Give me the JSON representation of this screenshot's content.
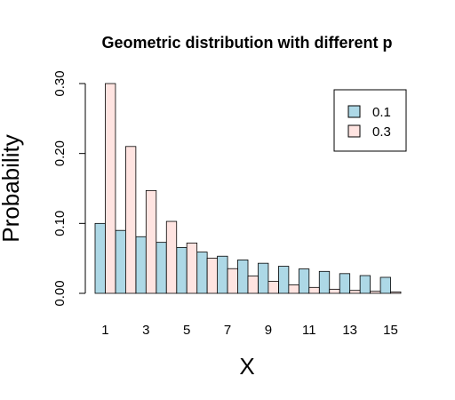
{
  "chart_data": {
    "type": "bar",
    "title": "Geometric distribution with different p",
    "xlabel": "X",
    "ylabel": "Probability",
    "categories": [
      "1",
      "2",
      "3",
      "4",
      "5",
      "6",
      "7",
      "8",
      "9",
      "10",
      "11",
      "12",
      "13",
      "14",
      "15"
    ],
    "x_tick_labels": [
      "1",
      "3",
      "5",
      "7",
      "9",
      "11",
      "13",
      "15"
    ],
    "y_tick_labels": [
      "0.00",
      "0.10",
      "0.20",
      "0.30"
    ],
    "ylim": [
      0,
      0.3
    ],
    "grid": false,
    "legend_position": "top-right",
    "series": [
      {
        "name": "0.1",
        "color": "#add8e6",
        "values": [
          0.1,
          0.09,
          0.081,
          0.0729,
          0.0656,
          0.059,
          0.0531,
          0.0478,
          0.043,
          0.0387,
          0.0349,
          0.0314,
          0.0282,
          0.0254,
          0.0229
        ]
      },
      {
        "name": "0.3",
        "color": "#ffe4e1",
        "values": [
          0.3,
          0.21,
          0.147,
          0.1029,
          0.072,
          0.0504,
          0.0353,
          0.0247,
          0.0173,
          0.0121,
          0.0085,
          0.0059,
          0.0042,
          0.0029,
          0.002
        ]
      }
    ]
  }
}
